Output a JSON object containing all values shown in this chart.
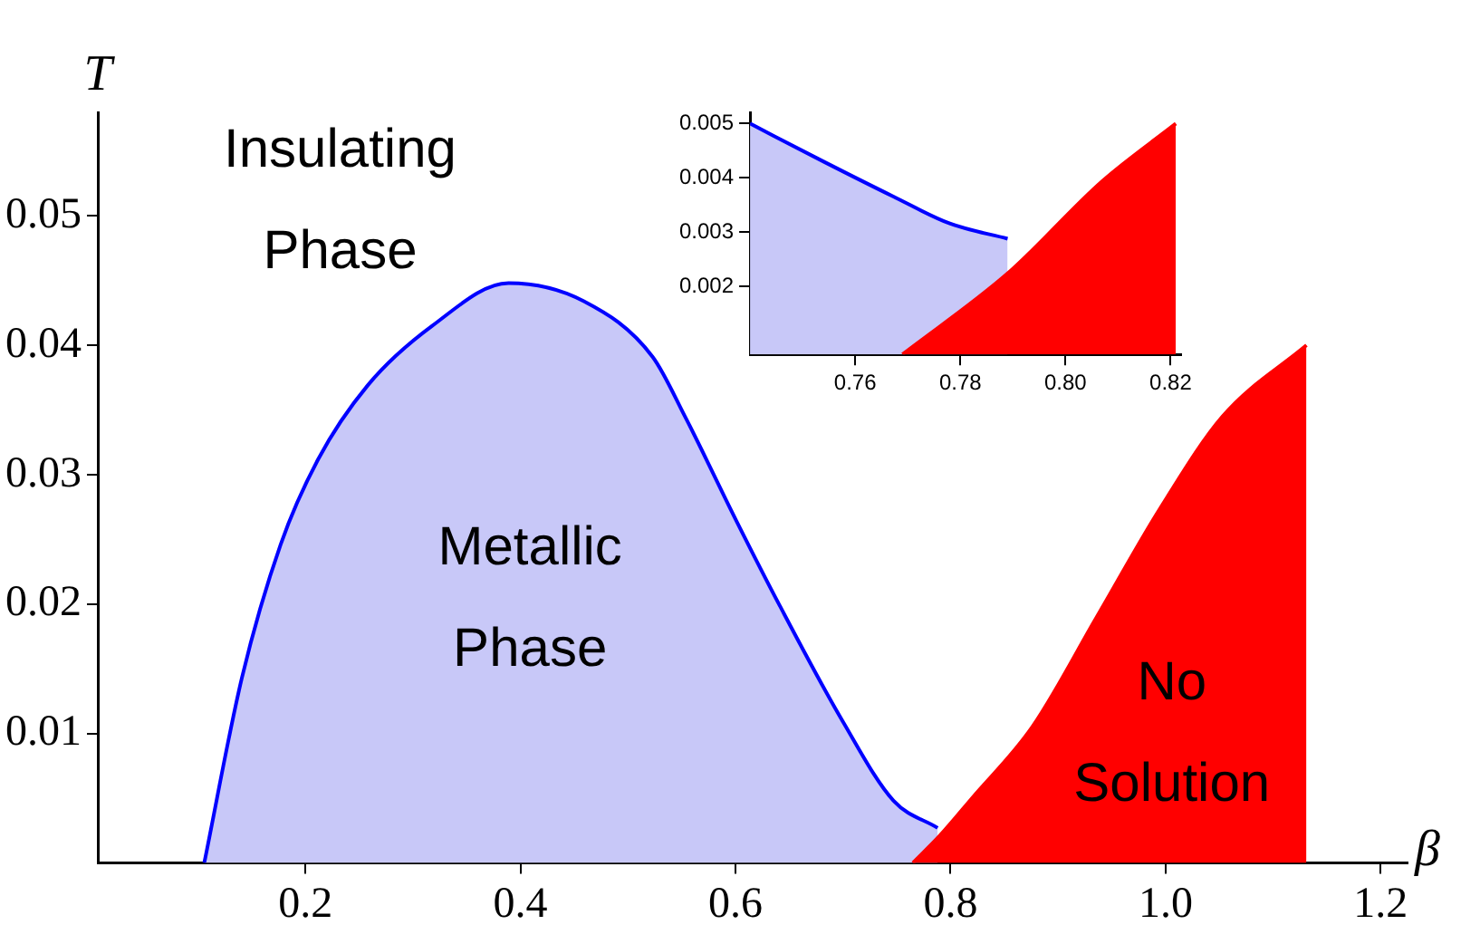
{
  "chart_data": [
    {
      "type": "area",
      "xlabel": "β",
      "ylabel": "T",
      "xlim": [
        0.007,
        1.225
      ],
      "ylim": [
        0,
        0.058
      ],
      "xticks": [
        0.2,
        0.4,
        0.6,
        0.8,
        {
          "value": 1.0,
          "label": "1.0"
        },
        1.2
      ],
      "yticks": [
        0.01,
        0.02,
        0.03,
        0.04,
        0.05
      ],
      "legend": false,
      "annotations": [
        "Insulating Phase",
        "Metallic Phase",
        "No Solution"
      ],
      "series": [
        {
          "color": "#c8c8f8",
          "x": [
            0.106,
            0.141,
            0.177,
            0.212,
            0.258,
            0.318,
            0.389,
            0.459,
            0.523,
            0.553,
            0.601,
            0.641,
            0.7,
            0.747,
            0.788
          ],
          "values": [
            0,
            0.0143,
            0.0246,
            0.0312,
            0.0369,
            0.0415,
            0.0448,
            0.0434,
            0.0391,
            0.0345,
            0.0264,
            0.0199,
            0.0109,
            0.0048,
            0.0027
          ]
        },
        {
          "color": "#ff0000",
          "x": [
            0.765,
            0.79,
            0.82,
            0.876,
            0.936,
            0.995,
            1.053,
            1.131
          ],
          "values": [
            0,
            0.0021,
            0.005,
            0.0105,
            0.019,
            0.0274,
            0.0345,
            0.04
          ]
        }
      ]
    },
    {
      "type": "area",
      "xlim": [
        0.74,
        0.822
      ],
      "ylim": [
        0.00075,
        0.0052
      ],
      "xticks": [
        0.76,
        0.78,
        {
          "value": 0.8,
          "label": "0.80"
        },
        0.82
      ],
      "yticks": [
        0.002,
        0.003,
        0.004,
        0.005
      ],
      "legend": false,
      "series": [
        {
          "color": "#c8c8f8",
          "x": [
            0.74,
            0.754,
            0.7672,
            0.778,
            0.789
          ],
          "values": [
            0.005,
            0.0043,
            0.00366,
            0.00316,
            0.00288
          ]
        },
        {
          "color": "#ff0000",
          "x": [
            0.769,
            0.789,
            0.807,
            0.821
          ],
          "values": [
            0.00075,
            0.00224,
            0.00394,
            0.005
          ]
        }
      ]
    }
  ]
}
